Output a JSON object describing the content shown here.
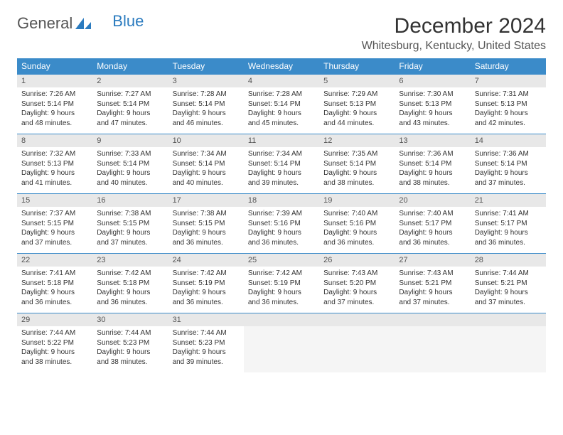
{
  "logo": {
    "text1": "General",
    "text2": "Blue"
  },
  "title": "December 2024",
  "location": "Whitesburg, Kentucky, United States",
  "colors": {
    "header_bg": "#3b8bc9",
    "header_text": "#ffffff",
    "daynum_bg": "#e8e8e8",
    "border": "#3b8bc9",
    "logo_blue": "#2b7bbf"
  },
  "weekdays": [
    "Sunday",
    "Monday",
    "Tuesday",
    "Wednesday",
    "Thursday",
    "Friday",
    "Saturday"
  ],
  "weeks": [
    {
      "nums": [
        "1",
        "2",
        "3",
        "4",
        "5",
        "6",
        "7"
      ],
      "data": [
        {
          "sr": "Sunrise: 7:26 AM",
          "ss": "Sunset: 5:14 PM",
          "dl1": "Daylight: 9 hours",
          "dl2": "and 48 minutes."
        },
        {
          "sr": "Sunrise: 7:27 AM",
          "ss": "Sunset: 5:14 PM",
          "dl1": "Daylight: 9 hours",
          "dl2": "and 47 minutes."
        },
        {
          "sr": "Sunrise: 7:28 AM",
          "ss": "Sunset: 5:14 PM",
          "dl1": "Daylight: 9 hours",
          "dl2": "and 46 minutes."
        },
        {
          "sr": "Sunrise: 7:28 AM",
          "ss": "Sunset: 5:14 PM",
          "dl1": "Daylight: 9 hours",
          "dl2": "and 45 minutes."
        },
        {
          "sr": "Sunrise: 7:29 AM",
          "ss": "Sunset: 5:13 PM",
          "dl1": "Daylight: 9 hours",
          "dl2": "and 44 minutes."
        },
        {
          "sr": "Sunrise: 7:30 AM",
          "ss": "Sunset: 5:13 PM",
          "dl1": "Daylight: 9 hours",
          "dl2": "and 43 minutes."
        },
        {
          "sr": "Sunrise: 7:31 AM",
          "ss": "Sunset: 5:13 PM",
          "dl1": "Daylight: 9 hours",
          "dl2": "and 42 minutes."
        }
      ]
    },
    {
      "nums": [
        "8",
        "9",
        "10",
        "11",
        "12",
        "13",
        "14"
      ],
      "data": [
        {
          "sr": "Sunrise: 7:32 AM",
          "ss": "Sunset: 5:13 PM",
          "dl1": "Daylight: 9 hours",
          "dl2": "and 41 minutes."
        },
        {
          "sr": "Sunrise: 7:33 AM",
          "ss": "Sunset: 5:14 PM",
          "dl1": "Daylight: 9 hours",
          "dl2": "and 40 minutes."
        },
        {
          "sr": "Sunrise: 7:34 AM",
          "ss": "Sunset: 5:14 PM",
          "dl1": "Daylight: 9 hours",
          "dl2": "and 40 minutes."
        },
        {
          "sr": "Sunrise: 7:34 AM",
          "ss": "Sunset: 5:14 PM",
          "dl1": "Daylight: 9 hours",
          "dl2": "and 39 minutes."
        },
        {
          "sr": "Sunrise: 7:35 AM",
          "ss": "Sunset: 5:14 PM",
          "dl1": "Daylight: 9 hours",
          "dl2": "and 38 minutes."
        },
        {
          "sr": "Sunrise: 7:36 AM",
          "ss": "Sunset: 5:14 PM",
          "dl1": "Daylight: 9 hours",
          "dl2": "and 38 minutes."
        },
        {
          "sr": "Sunrise: 7:36 AM",
          "ss": "Sunset: 5:14 PM",
          "dl1": "Daylight: 9 hours",
          "dl2": "and 37 minutes."
        }
      ]
    },
    {
      "nums": [
        "15",
        "16",
        "17",
        "18",
        "19",
        "20",
        "21"
      ],
      "data": [
        {
          "sr": "Sunrise: 7:37 AM",
          "ss": "Sunset: 5:15 PM",
          "dl1": "Daylight: 9 hours",
          "dl2": "and 37 minutes."
        },
        {
          "sr": "Sunrise: 7:38 AM",
          "ss": "Sunset: 5:15 PM",
          "dl1": "Daylight: 9 hours",
          "dl2": "and 37 minutes."
        },
        {
          "sr": "Sunrise: 7:38 AM",
          "ss": "Sunset: 5:15 PM",
          "dl1": "Daylight: 9 hours",
          "dl2": "and 36 minutes."
        },
        {
          "sr": "Sunrise: 7:39 AM",
          "ss": "Sunset: 5:16 PM",
          "dl1": "Daylight: 9 hours",
          "dl2": "and 36 minutes."
        },
        {
          "sr": "Sunrise: 7:40 AM",
          "ss": "Sunset: 5:16 PM",
          "dl1": "Daylight: 9 hours",
          "dl2": "and 36 minutes."
        },
        {
          "sr": "Sunrise: 7:40 AM",
          "ss": "Sunset: 5:17 PM",
          "dl1": "Daylight: 9 hours",
          "dl2": "and 36 minutes."
        },
        {
          "sr": "Sunrise: 7:41 AM",
          "ss": "Sunset: 5:17 PM",
          "dl1": "Daylight: 9 hours",
          "dl2": "and 36 minutes."
        }
      ]
    },
    {
      "nums": [
        "22",
        "23",
        "24",
        "25",
        "26",
        "27",
        "28"
      ],
      "data": [
        {
          "sr": "Sunrise: 7:41 AM",
          "ss": "Sunset: 5:18 PM",
          "dl1": "Daylight: 9 hours",
          "dl2": "and 36 minutes."
        },
        {
          "sr": "Sunrise: 7:42 AM",
          "ss": "Sunset: 5:18 PM",
          "dl1": "Daylight: 9 hours",
          "dl2": "and 36 minutes."
        },
        {
          "sr": "Sunrise: 7:42 AM",
          "ss": "Sunset: 5:19 PM",
          "dl1": "Daylight: 9 hours",
          "dl2": "and 36 minutes."
        },
        {
          "sr": "Sunrise: 7:42 AM",
          "ss": "Sunset: 5:19 PM",
          "dl1": "Daylight: 9 hours",
          "dl2": "and 36 minutes."
        },
        {
          "sr": "Sunrise: 7:43 AM",
          "ss": "Sunset: 5:20 PM",
          "dl1": "Daylight: 9 hours",
          "dl2": "and 37 minutes."
        },
        {
          "sr": "Sunrise: 7:43 AM",
          "ss": "Sunset: 5:21 PM",
          "dl1": "Daylight: 9 hours",
          "dl2": "and 37 minutes."
        },
        {
          "sr": "Sunrise: 7:44 AM",
          "ss": "Sunset: 5:21 PM",
          "dl1": "Daylight: 9 hours",
          "dl2": "and 37 minutes."
        }
      ]
    },
    {
      "nums": [
        "29",
        "30",
        "31",
        "",
        "",
        "",
        ""
      ],
      "data": [
        {
          "sr": "Sunrise: 7:44 AM",
          "ss": "Sunset: 5:22 PM",
          "dl1": "Daylight: 9 hours",
          "dl2": "and 38 minutes."
        },
        {
          "sr": "Sunrise: 7:44 AM",
          "ss": "Sunset: 5:23 PM",
          "dl1": "Daylight: 9 hours",
          "dl2": "and 38 minutes."
        },
        {
          "sr": "Sunrise: 7:44 AM",
          "ss": "Sunset: 5:23 PM",
          "dl1": "Daylight: 9 hours",
          "dl2": "and 39 minutes."
        },
        null,
        null,
        null,
        null
      ]
    }
  ]
}
